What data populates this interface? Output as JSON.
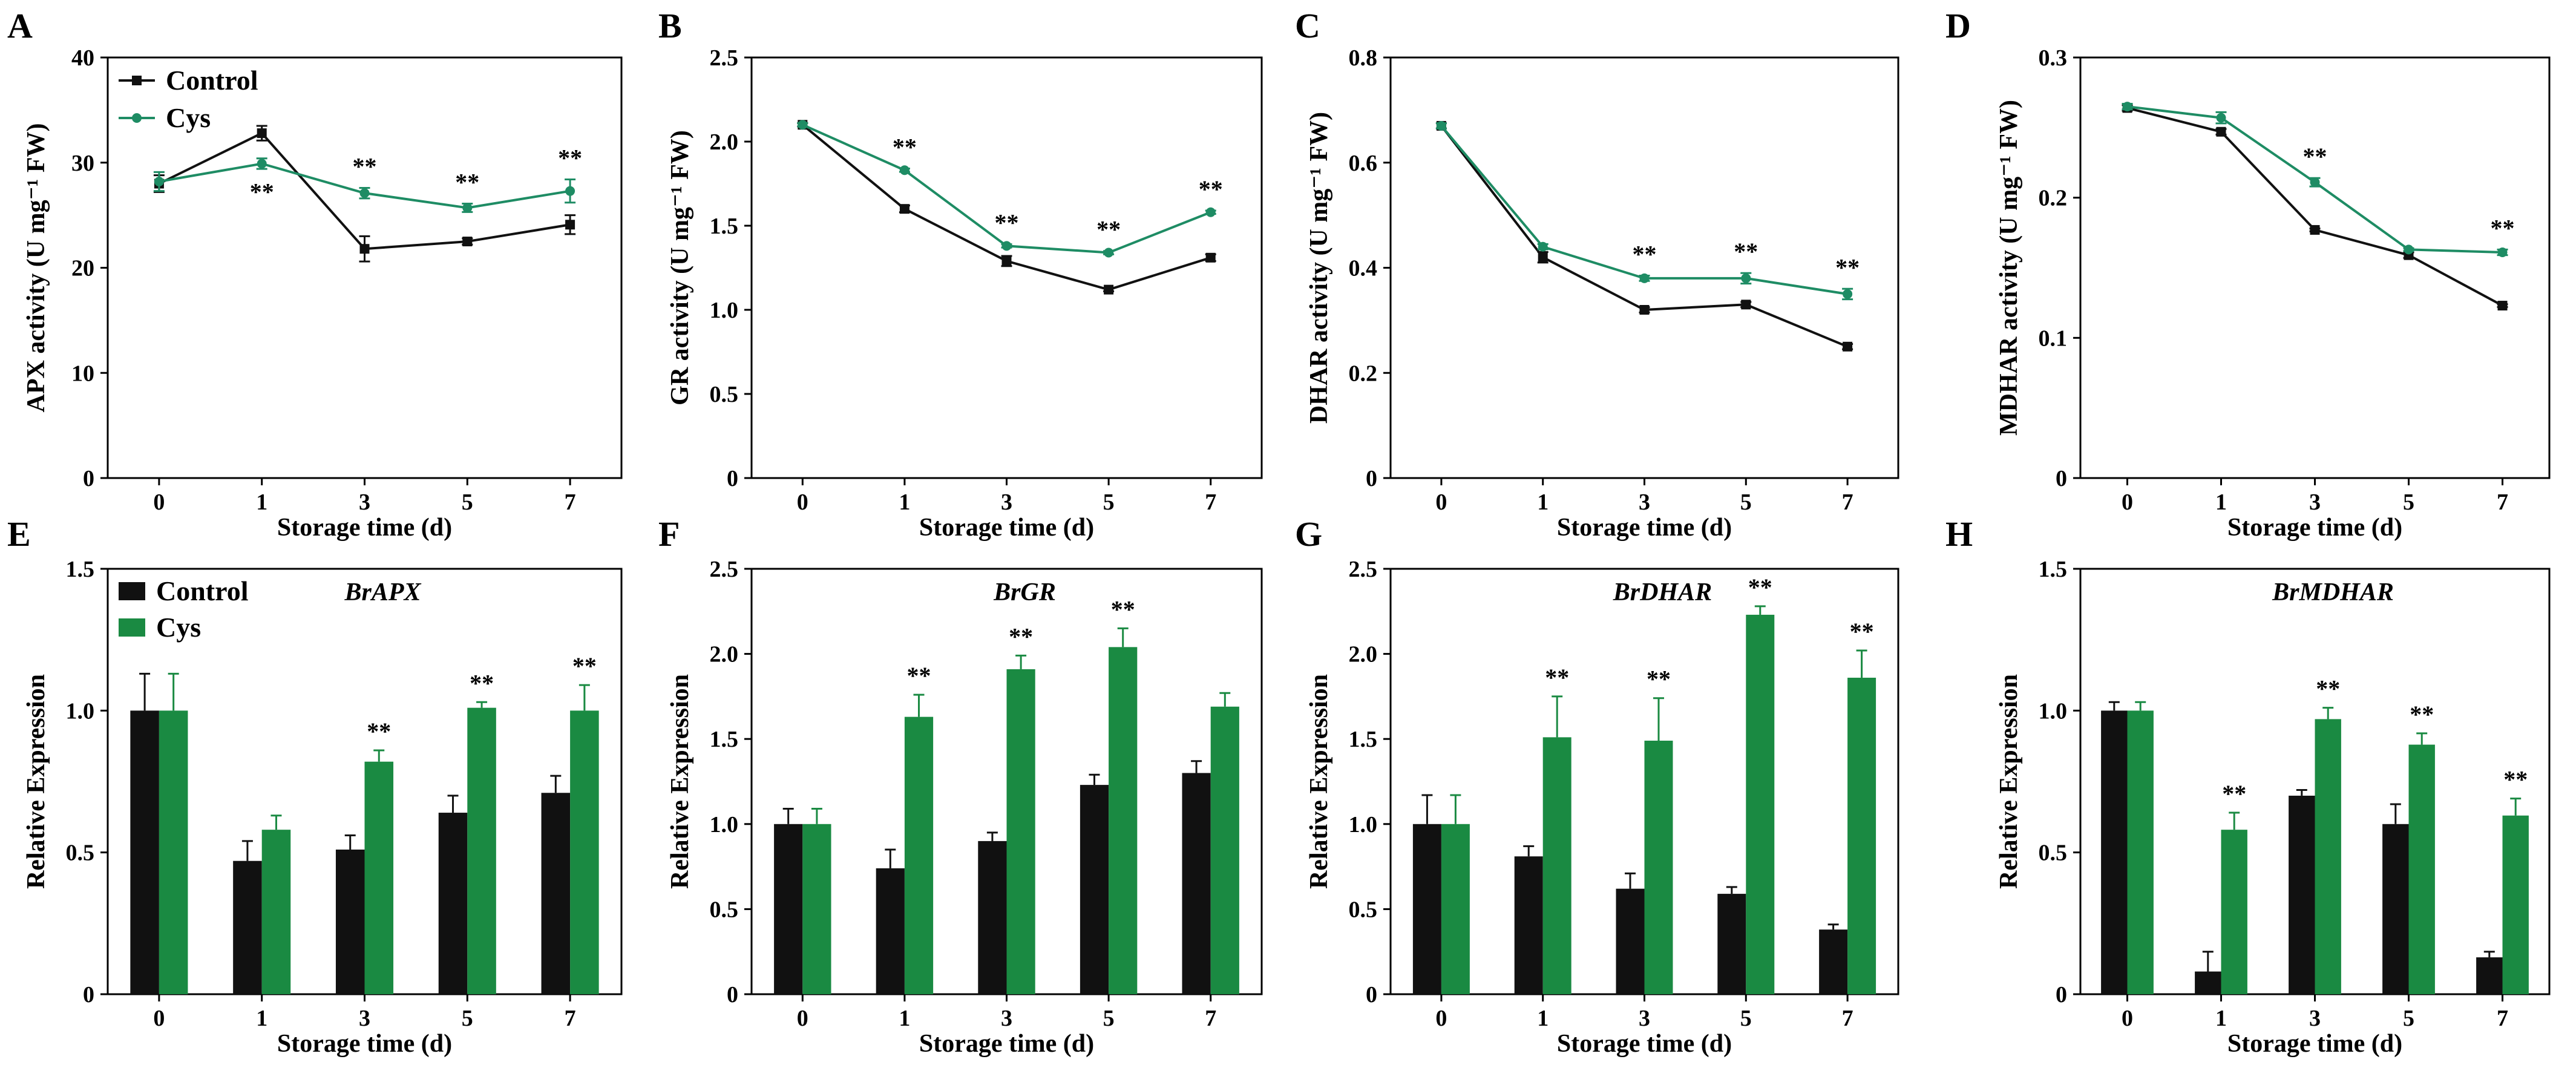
{
  "colors": {
    "control": "#111111",
    "cys_line": "#1e8c64",
    "cys_bar": "#1a8a42"
  },
  "legend": {
    "control": "Control",
    "cys": "Cys"
  },
  "chart_data": [
    {
      "panel": "A",
      "type": "line",
      "x": [
        "0",
        "1",
        "3",
        "5",
        "7"
      ],
      "xlabel": "Storage time (d)",
      "ylabel": "APX activity (U mg⁻¹ FW)",
      "ylim": [
        0,
        40
      ],
      "yticks": [
        "0",
        "10",
        "20",
        "30",
        "40"
      ],
      "legend": true,
      "gene": "",
      "series": [
        {
          "name": "Control",
          "values": [
            28.0,
            32.8,
            21.8,
            22.5,
            24.1
          ],
          "errors": [
            0.8,
            0.7,
            1.2,
            0.3,
            0.9
          ]
        },
        {
          "name": "Cys",
          "values": [
            28.2,
            29.9,
            27.1,
            25.7,
            27.3
          ],
          "errors": [
            0.9,
            0.5,
            0.5,
            0.4,
            1.1
          ]
        }
      ],
      "sig": [
        null,
        "**",
        "**",
        "**",
        "**"
      ],
      "sig_pos": [
        "",
        "below",
        "above",
        "above",
        "above"
      ]
    },
    {
      "panel": "B",
      "type": "line",
      "x": [
        "0",
        "1",
        "3",
        "5",
        "7"
      ],
      "xlabel": "Storage time (d)",
      "ylabel": "GR activity (U mg⁻¹ FW)",
      "ylim": [
        0,
        2.5
      ],
      "yticks": [
        "0",
        "0.5",
        "1.0",
        "1.5",
        "2.0",
        "2.5"
      ],
      "legend": false,
      "gene": "",
      "series": [
        {
          "name": "Control",
          "values": [
            2.1,
            1.6,
            1.29,
            1.12,
            1.31
          ],
          "errors": [
            0.01,
            0.02,
            0.03,
            0.01,
            0.02
          ]
        },
        {
          "name": "Cys",
          "values": [
            2.1,
            1.83,
            1.38,
            1.34,
            1.58
          ],
          "errors": [
            0.01,
            0.01,
            0.01,
            0.01,
            0.01
          ]
        }
      ],
      "sig": [
        null,
        "**",
        "**",
        "**",
        "**"
      ],
      "sig_pos": [
        "",
        "above",
        "above",
        "above",
        "above"
      ]
    },
    {
      "panel": "C",
      "type": "line",
      "x": [
        "0",
        "1",
        "3",
        "5",
        "7"
      ],
      "xlabel": "Storage time (d)",
      "ylabel": "DHAR activity (U mg⁻¹ FW)",
      "ylim": [
        0,
        0.8
      ],
      "yticks": [
        "0",
        "0.2",
        "0.4",
        "0.6",
        "0.8"
      ],
      "legend": false,
      "gene": "",
      "series": [
        {
          "name": "Control",
          "values": [
            0.67,
            0.42,
            0.32,
            0.33,
            0.25
          ],
          "errors": [
            0.005,
            0.01,
            0.005,
            0.005,
            0.005
          ]
        },
        {
          "name": "Cys",
          "values": [
            0.67,
            0.44,
            0.38,
            0.38,
            0.35
          ],
          "errors": [
            0.005,
            0.005,
            0.005,
            0.01,
            0.01
          ]
        }
      ],
      "sig": [
        null,
        null,
        "**",
        "**",
        "**"
      ],
      "sig_pos": [
        "",
        "",
        "above",
        "above",
        "above"
      ]
    },
    {
      "panel": "D",
      "type": "line",
      "x": [
        "0",
        "1",
        "3",
        "5",
        "7"
      ],
      "xlabel": "Storage time (d)",
      "ylabel": "MDHAR activity (U mg⁻¹ FW)",
      "ylim": [
        0,
        0.3
      ],
      "yticks": [
        "0",
        "0.1",
        "0.2",
        "0.3"
      ],
      "legend": false,
      "gene": "",
      "series": [
        {
          "name": "Control",
          "values": [
            0.264,
            0.247,
            0.177,
            0.159,
            0.123
          ],
          "errors": [
            0.002,
            0.002,
            0.001,
            0.002,
            0.001
          ]
        },
        {
          "name": "Cys",
          "values": [
            0.265,
            0.257,
            0.211,
            0.163,
            0.161
          ],
          "errors": [
            0.002,
            0.004,
            0.003,
            0.001,
            0.002
          ]
        }
      ],
      "sig": [
        null,
        null,
        "**",
        null,
        "**"
      ],
      "sig_pos": [
        "",
        "",
        "above",
        "",
        "above"
      ]
    },
    {
      "panel": "E",
      "type": "bar",
      "categories": [
        "0",
        "1",
        "3",
        "5",
        "7"
      ],
      "xlabel": "Storage time (d)",
      "ylabel": "Relative Expression",
      "ylim": [
        0,
        1.5
      ],
      "yticks": [
        "0",
        "0.5",
        "1.0",
        "1.5"
      ],
      "legend": true,
      "gene": "BrAPX",
      "series": [
        {
          "name": "Control",
          "values": [
            1.0,
            0.47,
            0.51,
            0.64,
            0.71
          ],
          "errors": [
            0.13,
            0.07,
            0.05,
            0.06,
            0.06
          ]
        },
        {
          "name": "Cys",
          "values": [
            1.0,
            0.58,
            0.82,
            1.01,
            1.0
          ],
          "errors": [
            0.13,
            0.05,
            0.04,
            0.02,
            0.09
          ]
        }
      ],
      "sig": [
        null,
        null,
        "**",
        "**",
        "**"
      ]
    },
    {
      "panel": "F",
      "type": "bar",
      "categories": [
        "0",
        "1",
        "3",
        "5",
        "7"
      ],
      "xlabel": "Storage time (d)",
      "ylabel": "Relative Expression",
      "ylim": [
        0,
        2.5
      ],
      "yticks": [
        "0",
        "0.5",
        "1.0",
        "1.5",
        "2.0",
        "2.5"
      ],
      "legend": false,
      "gene": "BrGR",
      "series": [
        {
          "name": "Control",
          "values": [
            1.0,
            0.74,
            0.9,
            1.23,
            1.3
          ],
          "errors": [
            0.09,
            0.11,
            0.05,
            0.06,
            0.07
          ]
        },
        {
          "name": "Cys",
          "values": [
            1.0,
            1.63,
            1.91,
            2.04,
            1.69
          ],
          "errors": [
            0.09,
            0.13,
            0.08,
            0.11,
            0.08
          ]
        }
      ],
      "sig": [
        null,
        "**",
        "**",
        "**",
        null
      ]
    },
    {
      "panel": "G",
      "type": "bar",
      "categories": [
        "0",
        "1",
        "3",
        "5",
        "7"
      ],
      "xlabel": "Storage time (d)",
      "ylabel": "Relative Expression",
      "ylim": [
        0,
        2.5
      ],
      "yticks": [
        "0",
        "0.5",
        "1.0",
        "1.5",
        "2.0",
        "2.5"
      ],
      "legend": false,
      "gene": "BrDHAR",
      "series": [
        {
          "name": "Control",
          "values": [
            1.0,
            0.81,
            0.62,
            0.59,
            0.38
          ],
          "errors": [
            0.17,
            0.06,
            0.09,
            0.04,
            0.03
          ]
        },
        {
          "name": "Cys",
          "values": [
            1.0,
            1.51,
            1.49,
            2.23,
            1.86
          ],
          "errors": [
            0.17,
            0.24,
            0.25,
            0.05,
            0.16
          ]
        }
      ],
      "sig": [
        null,
        "**",
        "**",
        "**",
        "**"
      ]
    },
    {
      "panel": "H",
      "type": "bar",
      "categories": [
        "0",
        "1",
        "3",
        "5",
        "7"
      ],
      "xlabel": "Storage time (d)",
      "ylabel": "Relative Expression",
      "ylim": [
        0,
        1.5
      ],
      "yticks": [
        "0",
        "0.5",
        "1.0",
        "1.5"
      ],
      "legend": false,
      "gene": "BrMDHAR",
      "series": [
        {
          "name": "Control",
          "values": [
            1.0,
            0.08,
            0.7,
            0.6,
            0.13
          ],
          "errors": [
            0.03,
            0.07,
            0.02,
            0.07,
            0.02
          ]
        },
        {
          "name": "Cys",
          "values": [
            1.0,
            0.58,
            0.97,
            0.88,
            0.63
          ],
          "errors": [
            0.03,
            0.06,
            0.04,
            0.04,
            0.06
          ]
        }
      ],
      "sig": [
        null,
        "**",
        "**",
        "**",
        "**"
      ]
    }
  ]
}
